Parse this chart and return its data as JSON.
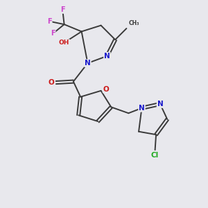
{
  "background_color": "#e8e8ed",
  "bond_color": "#3a3a3a",
  "atom_colors": {
    "N": "#1a1acc",
    "O": "#cc1a1a",
    "F": "#cc44cc",
    "Cl": "#22aa22"
  },
  "lw": 1.4
}
